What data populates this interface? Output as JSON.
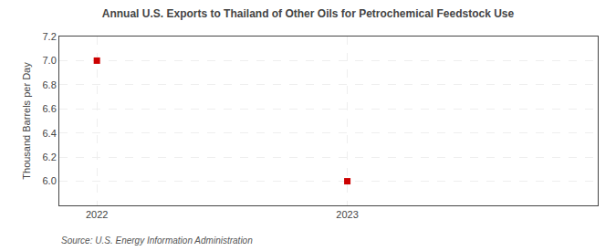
{
  "chart_data": {
    "type": "scatter",
    "title": "Annual U.S. Exports to Thailand of Other Oils for Petrochemical Feedstock Use",
    "ylabel": "Thousand Barrels per Day",
    "annotations": [
      "Source: U.S. Energy Information Administration"
    ],
    "x": [
      2022,
      2023
    ],
    "values": [
      7.0,
      6.0
    ],
    "color": "#cc0000",
    "marker": "square",
    "xlim": [
      2021.85,
      2024.0
    ],
    "xticks": [
      2022,
      2023
    ],
    "ylim": [
      5.8,
      7.2
    ],
    "yticks": [
      {
        "value": 6.0,
        "label": "6.0"
      },
      6.2,
      6.4,
      6.6,
      6.8,
      {
        "value": 7.0,
        "label": "7.0"
      },
      7.2
    ],
    "grid": true
  }
}
